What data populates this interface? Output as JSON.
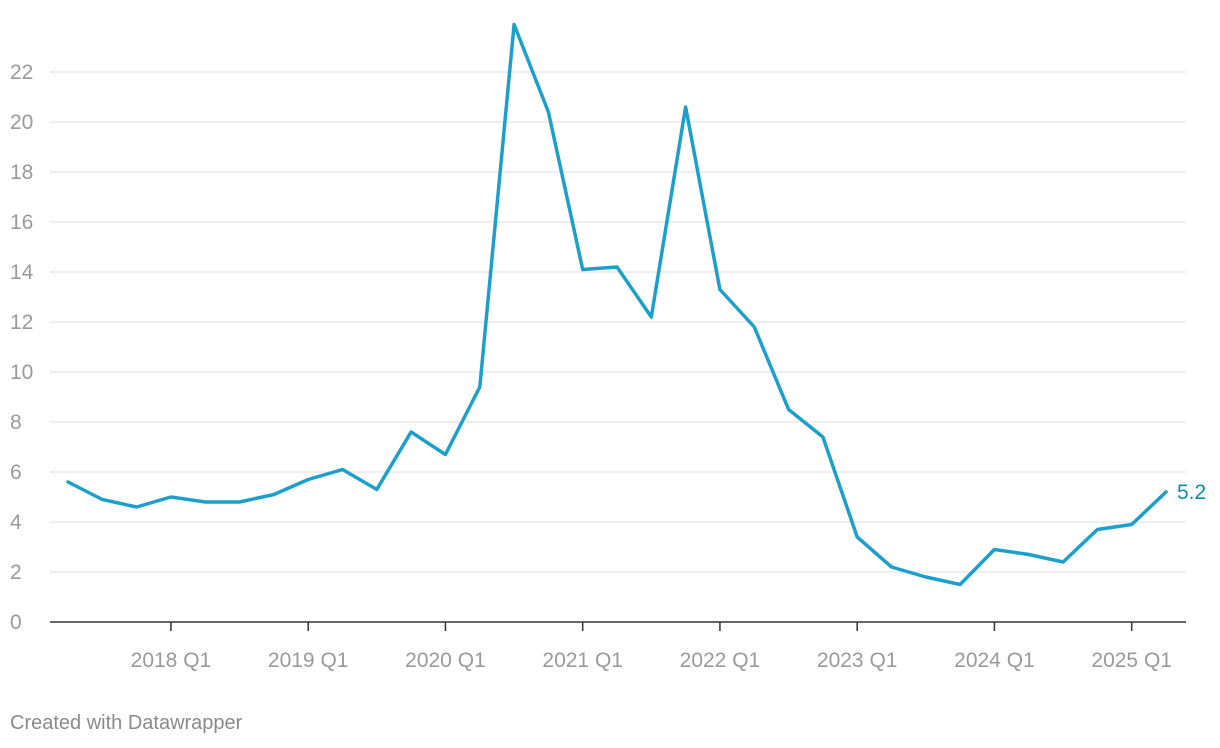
{
  "credit": "Created with Datawrapper",
  "colors": {
    "line": "#1d9fcb",
    "label": "#0b8fa0",
    "grid": "#e3e3e3",
    "tick_text": "#9a9a9a",
    "axis": "#333333"
  },
  "chart_data": {
    "type": "line",
    "title": "",
    "xlabel": "",
    "ylabel": "",
    "ylim": [
      0,
      24
    ],
    "yticks": [
      0,
      2,
      4,
      6,
      8,
      10,
      12,
      14,
      16,
      18,
      20,
      22
    ],
    "xticks": [
      "2018 Q1",
      "2019 Q1",
      "2020 Q1",
      "2021 Q1",
      "2022 Q1",
      "2023 Q1",
      "2024 Q1",
      "2025 Q1"
    ],
    "grid": true,
    "x": [
      "2017 Q2",
      "2017 Q3",
      "2017 Q4",
      "2018 Q1",
      "2018 Q2",
      "2018 Q3",
      "2018 Q4",
      "2019 Q1",
      "2019 Q2",
      "2019 Q3",
      "2019 Q4",
      "2020 Q1",
      "2020 Q2",
      "2020 Q3",
      "2020 Q4",
      "2021 Q1",
      "2021 Q2",
      "2021 Q3",
      "2021 Q4",
      "2022 Q1",
      "2022 Q2",
      "2022 Q3",
      "2022 Q4",
      "2023 Q1",
      "2023 Q2",
      "2023 Q3",
      "2023 Q4",
      "2024 Q1",
      "2024 Q2",
      "2024 Q3",
      "2024 Q4",
      "2025 Q1",
      "2025 Q2"
    ],
    "series": [
      {
        "values": [
          5.6,
          4.9,
          4.6,
          5.0,
          4.8,
          4.8,
          5.1,
          5.7,
          6.1,
          5.3,
          7.6,
          6.7,
          9.4,
          23.9,
          20.4,
          14.1,
          14.2,
          12.2,
          20.6,
          13.3,
          11.8,
          8.5,
          7.4,
          3.4,
          2.2,
          1.8,
          1.5,
          2.9,
          2.7,
          2.4,
          3.7,
          3.9,
          5.2
        ]
      }
    ],
    "end_label": "5.2"
  }
}
